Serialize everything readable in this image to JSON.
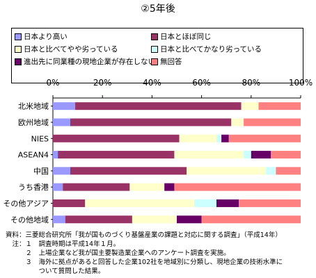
{
  "title": "②5年後",
  "notes": [
    "資料：三菱総合研究所「我が国ものづくり基盤産業の課題と対応に関する調査」（平成14年）",
    "　注：１　調査時期は平成14年１月。",
    "　　　２　上場企業など我が国主要製造業企業へのアンケート調査を実施。",
    "　　　３　海外に拠点があると回答した企業102社を地域別に分類し、現地企業の技術水準に",
    "　　　　　ついて質問した結果。"
  ],
  "chart_data": {
    "type": "bar",
    "orientation": "horizontal",
    "stacked": "percent",
    "title": "②5年後",
    "categories": [
      "北米地域",
      "欧州地域",
      "NIES",
      "ASEAN4",
      "中国",
      "うち香港",
      "その他アジア",
      "その他地域"
    ],
    "xlim": [
      0,
      100
    ],
    "xticks": [
      "0%",
      "20%",
      "40%",
      "60%",
      "80%",
      "100%"
    ],
    "xaxis_position": "top",
    "grid": false,
    "legend_position": "top",
    "series": [
      {
        "name": "日本より高い",
        "color": "#9999ff",
        "values": [
          9,
          7,
          0,
          2,
          7,
          4,
          0,
          5
        ]
      },
      {
        "name": "日本とほぼ同じ",
        "color": "#993366",
        "values": [
          67,
          65,
          51,
          47,
          47,
          27,
          13,
          27
        ]
      },
      {
        "name": "日本と比べてやや劣っている",
        "color": "#ffffcc",
        "values": [
          7,
          5,
          15,
          28,
          32,
          14,
          44,
          18
        ]
      },
      {
        "name": "日本と比べてかなり劣っている",
        "color": "#ccffff",
        "values": [
          0,
          0,
          2,
          3,
          4,
          0,
          9,
          0
        ]
      },
      {
        "name": "進出先に同業種の現地企業が存在しない",
        "color": "#660066",
        "values": [
          0,
          0,
          3,
          8,
          0,
          4,
          9,
          10
        ]
      },
      {
        "name": "無回答",
        "color": "#ff8080",
        "values": [
          17,
          23,
          29,
          12,
          10,
          51,
          25,
          40
        ]
      }
    ]
  }
}
